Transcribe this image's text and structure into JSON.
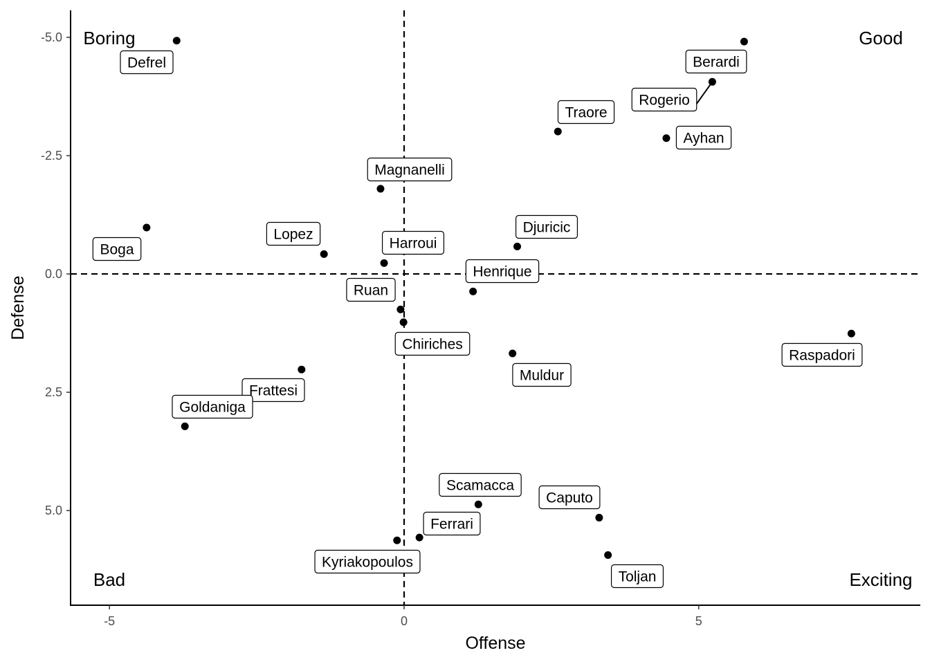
{
  "chart_data": {
    "type": "scatter",
    "xlabel": "Offense",
    "ylabel": "Defense",
    "xlim": [
      -5.66,
      8.76
    ],
    "ylim": [
      -5.57,
      7.0
    ],
    "y_reversed": true,
    "grid": false,
    "xticks": [
      {
        "v": -5,
        "label": "-5"
      },
      {
        "v": 0,
        "label": "0"
      },
      {
        "v": 5,
        "label": "5"
      }
    ],
    "yticks": [
      {
        "v": -5,
        "label": "-5.0"
      },
      {
        "v": -2.5,
        "label": "-2.5"
      },
      {
        "v": 0,
        "label": "0.0"
      },
      {
        "v": 2.5,
        "label": "2.5"
      },
      {
        "v": 5,
        "label": "5.0"
      }
    ],
    "reference_lines": {
      "x": 0,
      "y": 0,
      "style": "dashed"
    },
    "quadrant_labels": {
      "top_left": "Boring",
      "top_right": "Good",
      "bottom_left": "Bad",
      "bottom_right": "Exciting"
    },
    "points": [
      {
        "name": "Defrel",
        "x": -3.86,
        "y": -4.93
      },
      {
        "name": "Berardi",
        "x": 5.77,
        "y": -4.91
      },
      {
        "name": "Rogerio",
        "x": 5.23,
        "y": -4.06
      },
      {
        "name": "Traore",
        "x": 2.61,
        "y": -3.01
      },
      {
        "name": "Ayhan",
        "x": 4.45,
        "y": -2.87
      },
      {
        "name": "Magnanelli",
        "x": -0.4,
        "y": -1.8
      },
      {
        "name": "Boga",
        "x": -4.37,
        "y": -0.98
      },
      {
        "name": "Lopez",
        "x": -1.36,
        "y": -0.42
      },
      {
        "name": "Harroui",
        "x": -0.34,
        "y": -0.23
      },
      {
        "name": "Djuricic",
        "x": 1.92,
        "y": -0.58
      },
      {
        "name": "Henrique",
        "x": 1.17,
        "y": 0.37
      },
      {
        "name": "Ruan",
        "x": -0.06,
        "y": 0.75
      },
      {
        "name": "Chiriches",
        "x": -0.01,
        "y": 1.02
      },
      {
        "name": "Raspadori",
        "x": 7.59,
        "y": 1.26
      },
      {
        "name": "Muldur",
        "x": 1.84,
        "y": 1.68
      },
      {
        "name": "Frattesi",
        "x": -1.74,
        "y": 2.02
      },
      {
        "name": "Goldaniga",
        "x": -3.72,
        "y": 3.22
      },
      {
        "name": "Scamacca",
        "x": 1.26,
        "y": 4.87
      },
      {
        "name": "Caputo",
        "x": 3.31,
        "y": 5.15
      },
      {
        "name": "Ferrari",
        "x": 0.26,
        "y": 5.57
      },
      {
        "name": "Kyriakopoulos",
        "x": -0.12,
        "y": 5.63
      },
      {
        "name": "Toljan",
        "x": 3.46,
        "y": 5.94
      }
    ]
  }
}
